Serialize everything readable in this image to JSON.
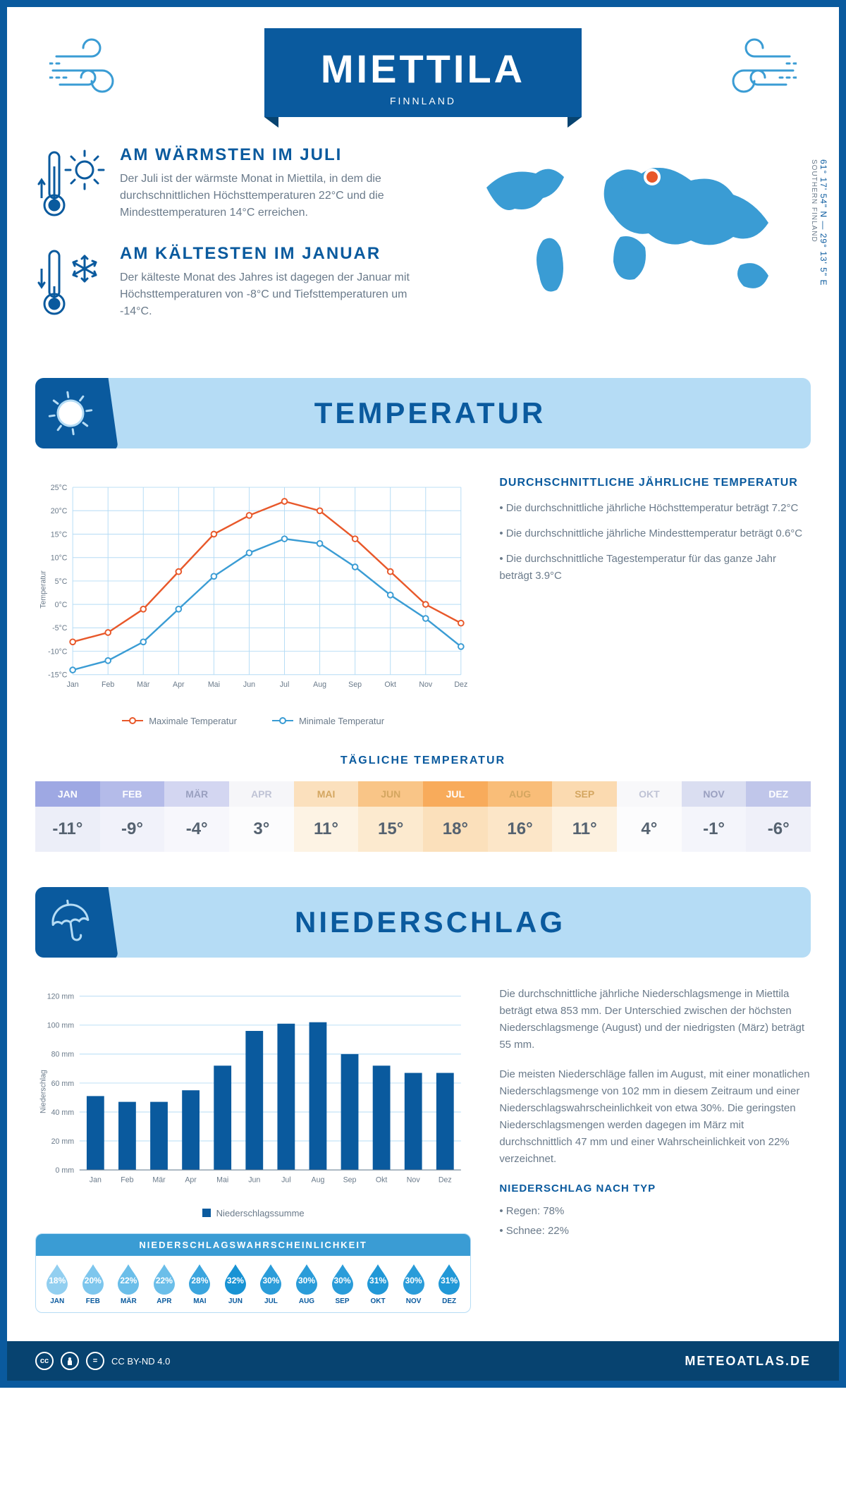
{
  "header": {
    "title": "MIETTILA",
    "country": "FINNLAND"
  },
  "intro": {
    "warm": {
      "heading": "AM WÄRMSTEN IM JULI",
      "text": "Der Juli ist der wärmste Monat in Miettila, in dem die durchschnittlichen Höchsttemperaturen 22°C und die Mindesttemperaturen 14°C erreichen."
    },
    "cold": {
      "heading": "AM KÄLTESTEN IM JANUAR",
      "text": "Der kälteste Monat des Jahres ist dagegen der Januar mit Höchsttemperaturen von -8°C und Tiefsttemperaturen um -14°C."
    },
    "coords": "61° 17' 54\" N — 29° 13' 5\" E",
    "region": "SOUTHERN FINLAND"
  },
  "months_short": [
    "Jan",
    "Feb",
    "Mär",
    "Apr",
    "Mai",
    "Jun",
    "Jul",
    "Aug",
    "Sep",
    "Okt",
    "Nov",
    "Dez"
  ],
  "months_upper": [
    "JAN",
    "FEB",
    "MÄR",
    "APR",
    "MAI",
    "JUN",
    "JUL",
    "AUG",
    "SEP",
    "OKT",
    "NOV",
    "DEZ"
  ],
  "temperature": {
    "section_title": "TEMPERATUR",
    "chart": {
      "type": "line",
      "y_label": "Temperatur",
      "y_ticks": [
        "-15°C",
        "-10°C",
        "-5°C",
        "0°C",
        "5°C",
        "10°C",
        "15°C",
        "20°C",
        "25°C"
      ],
      "ylim": [
        -15,
        25
      ],
      "series": [
        {
          "name": "Maximale Temperatur",
          "color": "#e8582a",
          "values": [
            -8,
            -6,
            -1,
            7,
            15,
            19,
            22,
            20,
            14,
            7,
            0,
            -4
          ]
        },
        {
          "name": "Minimale Temperatur",
          "color": "#3a9cd4",
          "values": [
            -14,
            -12,
            -8,
            -1,
            6,
            11,
            14,
            13,
            8,
            2,
            -3,
            -9
          ]
        }
      ],
      "grid_color": "#b5dcf5",
      "background_color": "#ffffff",
      "label_fontsize": 11
    },
    "info_title": "DURCHSCHNITTLICHE JÄHRLICHE TEMPERATUR",
    "bullets": [
      "• Die durchschnittliche jährliche Höchsttemperatur beträgt 7.2°C",
      "• Die durchschnittliche jährliche Mindesttemperatur beträgt 0.6°C",
      "• Die durchschnittliche Tagestemperatur für das ganze Jahr beträgt 3.9°C"
    ],
    "daily_title": "TÄGLICHE TEMPERATUR",
    "daily": {
      "values": [
        "-11°",
        "-9°",
        "-4°",
        "3°",
        "11°",
        "15°",
        "18°",
        "16°",
        "11°",
        "4°",
        "-1°",
        "-6°"
      ],
      "header_colors": [
        "#9ea8e3",
        "#b4bbe9",
        "#d3d6f1",
        "#f6f6f9",
        "#fbe0bd",
        "#f9c587",
        "#f8ab5b",
        "#f9bd78",
        "#fbdab0",
        "#f8f8fa",
        "#dadef1",
        "#c0c6ea"
      ],
      "header_text_colors": [
        "#ffffff",
        "#ffffff",
        "#9aa0c0",
        "#bfc3d5",
        "#d4a660",
        "#d4a660",
        "#ffffff",
        "#d4a660",
        "#d4a660",
        "#bfc3d5",
        "#9aa0c0",
        "#ffffff"
      ],
      "value_bg_colors": [
        "#eceef8",
        "#f1f2fa",
        "#f7f7fc",
        "#fcfcfd",
        "#fdf3e4",
        "#fceacf",
        "#fbe0bb",
        "#fce6c8",
        "#fdf1df",
        "#fcfcfd",
        "#f4f5fb",
        "#eff0f9"
      ]
    }
  },
  "precipitation": {
    "section_title": "NIEDERSCHLAG",
    "chart": {
      "type": "bar",
      "y_label": "Niederschlag",
      "y_ticks": [
        "0 mm",
        "20 mm",
        "40 mm",
        "60 mm",
        "80 mm",
        "100 mm",
        "120 mm"
      ],
      "ylim": [
        0,
        120
      ],
      "bar_color": "#0a5a9e",
      "values": [
        51,
        47,
        47,
        55,
        72,
        96,
        101,
        102,
        80,
        72,
        67,
        67
      ],
      "legend": "Niederschlagssumme",
      "grid_color": "#b5dcf5",
      "label_fontsize": 11
    },
    "text1": "Die durchschnittliche jährliche Niederschlagsmenge in Miettila beträgt etwa 853 mm. Der Unterschied zwischen der höchsten Niederschlagsmenge (August) und der niedrigsten (März) beträgt 55 mm.",
    "text2": "Die meisten Niederschläge fallen im August, mit einer monatlichen Niederschlagsmenge von 102 mm in diesem Zeitraum und einer Niederschlagswahrscheinlichkeit von etwa 30%. Die geringsten Niederschlagsmengen werden dagegen im März mit durchschnittlich 47 mm und einer Wahrscheinlichkeit von 22% verzeichnet.",
    "by_type_title": "NIEDERSCHLAG NACH TYP",
    "by_type": [
      "• Regen: 78%",
      "• Schnee: 22%"
    ],
    "probability": {
      "title": "NIEDERSCHLAGSWAHRSCHEINLICHKEIT",
      "values": [
        "18%",
        "20%",
        "22%",
        "22%",
        "28%",
        "32%",
        "30%",
        "30%",
        "30%",
        "31%",
        "30%",
        "31%"
      ],
      "colors": [
        "#92cff0",
        "#7dc6ed",
        "#6bbee9",
        "#6bbee9",
        "#3ba5de",
        "#1893d4",
        "#2a9cd9",
        "#2a9cd9",
        "#2a9cd9",
        "#2198d7",
        "#2a9cd9",
        "#2198d7"
      ]
    }
  },
  "footer": {
    "license": "CC BY-ND 4.0",
    "brand": "METEOATLAS.DE"
  },
  "colors": {
    "primary": "#0a5a9e",
    "light_blue": "#b5dcf5",
    "mid_blue": "#3a9cd4",
    "text_grey": "#6a7a8a"
  }
}
